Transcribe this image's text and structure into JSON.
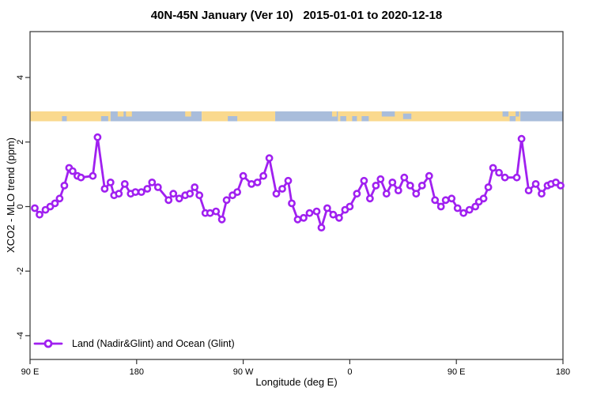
{
  "title": "40N-45N January (Ver 10)   2015-01-01 to 2020-12-18",
  "axes": {
    "x_label": "Longitude (deg E)",
    "y_label": "XCO2 - MLO trend (ppm)",
    "x_ticks": [
      {
        "lon": 90,
        "label": "90 E"
      },
      {
        "lon": 180,
        "label": "180"
      },
      {
        "lon": 270,
        "label": "90 W"
      },
      {
        "lon": 360,
        "label": "0"
      },
      {
        "lon": 450,
        "label": "90 E"
      },
      {
        "lon": 540,
        "label": "180"
      }
    ],
    "y_ticks": [
      {
        "value": -4,
        "label": "-4"
      },
      {
        "value": -2,
        "label": "-2"
      },
      {
        "value": 0,
        "label": "0"
      },
      {
        "value": 2,
        "label": "2"
      },
      {
        "value": 4,
        "label": "4"
      }
    ]
  },
  "legend": {
    "label": "Land (Nadir&Glint) and Ocean (Glint)"
  },
  "colors": {
    "series": "#A020F0",
    "marker_fill": "#ffffff",
    "land": "#FAD98E",
    "ocean": "#A9BDDB",
    "axis": "#333333",
    "text": "#000000"
  },
  "map_strip": {
    "description": "land/ocean world-map band drawn across the top of the plot",
    "base": [
      {
        "from": 90,
        "to": 158,
        "type": "land"
      },
      {
        "from": 158,
        "to": 235,
        "type": "ocean"
      },
      {
        "from": 235,
        "to": 297,
        "type": "land"
      },
      {
        "from": 297,
        "to": 350,
        "type": "ocean"
      },
      {
        "from": 350,
        "to": 504,
        "type": "land"
      },
      {
        "from": 504,
        "to": 540,
        "type": "ocean"
      }
    ],
    "patches": [
      {
        "from": 117,
        "to": 121,
        "row": "bottom",
        "type": "ocean"
      },
      {
        "from": 150,
        "to": 156,
        "row": "bottom",
        "type": "ocean"
      },
      {
        "from": 164,
        "to": 169,
        "row": "top",
        "type": "land"
      },
      {
        "from": 171,
        "to": 176,
        "row": "top",
        "type": "land"
      },
      {
        "from": 221,
        "to": 226,
        "row": "top",
        "type": "land"
      },
      {
        "from": 257,
        "to": 265,
        "row": "bottom",
        "type": "ocean"
      },
      {
        "from": 345,
        "to": 349,
        "row": "top",
        "type": "land"
      },
      {
        "from": 352,
        "to": 357,
        "row": "bottom",
        "type": "ocean"
      },
      {
        "from": 362,
        "to": 366,
        "row": "bottom",
        "type": "ocean"
      },
      {
        "from": 370,
        "to": 376,
        "row": "bottom",
        "type": "ocean"
      },
      {
        "from": 387,
        "to": 398,
        "row": "top",
        "type": "ocean"
      },
      {
        "from": 405,
        "to": 412,
        "row": "mid",
        "type": "ocean"
      },
      {
        "from": 489,
        "to": 494,
        "row": "top",
        "type": "ocean"
      },
      {
        "from": 495,
        "to": 500,
        "row": "bottom",
        "type": "ocean"
      },
      {
        "from": 500,
        "to": 503,
        "row": "top",
        "type": "ocean"
      }
    ]
  },
  "chart_data": {
    "type": "line",
    "title": "40N-45N January (Ver 10)   2015-01-01 to 2020-12-18",
    "xlabel": "Longitude (deg E)",
    "ylabel": "XCO2 - MLO trend (ppm)",
    "series_name": "Land (Nadir&Glint) and Ocean (Glint)",
    "marker": "open-circle",
    "grid": false,
    "legend_position": "bottom-left",
    "xlim": [
      90,
      540
    ],
    "ylim": [
      -4.75,
      5.4
    ],
    "x": [
      94,
      98,
      103,
      107,
      111,
      115,
      119,
      123,
      126,
      130,
      133,
      143,
      147,
      153,
      158,
      161,
      165,
      170,
      175,
      179,
      184,
      189,
      193,
      198,
      207,
      211,
      216,
      221,
      225,
      229,
      233,
      238,
      242,
      247,
      252,
      256,
      261,
      265,
      270,
      277,
      282,
      287,
      292,
      298,
      303,
      308,
      311,
      316,
      321,
      326,
      332,
      336,
      341,
      346,
      351,
      356,
      360,
      366,
      372,
      377,
      382,
      386,
      391,
      396,
      401,
      406,
      411,
      416,
      421,
      427,
      432,
      437,
      441,
      446,
      451,
      456,
      461,
      466,
      469,
      473,
      477,
      481,
      486,
      491,
      501,
      505,
      511,
      517,
      522,
      527,
      530,
      534,
      538
    ],
    "y": [
      -0.05,
      -0.25,
      -0.1,
      0,
      0.1,
      0.25,
      0.65,
      1.2,
      1.1,
      0.95,
      0.9,
      0.95,
      2.15,
      0.55,
      0.75,
      0.35,
      0.4,
      0.7,
      0.4,
      0.45,
      0.45,
      0.55,
      0.75,
      0.6,
      0.2,
      0.4,
      0.25,
      0.35,
      0.4,
      0.6,
      0.35,
      -0.2,
      -0.2,
      -0.15,
      -0.4,
      0.2,
      0.35,
      0.45,
      0.95,
      0.7,
      0.75,
      0.95,
      1.5,
      0.4,
      0.55,
      0.8,
      0.1,
      -0.4,
      -0.35,
      -0.2,
      -0.15,
      -0.65,
      -0.05,
      -0.25,
      -0.35,
      -0.1,
      0,
      0.4,
      0.8,
      0.25,
      0.65,
      0.85,
      0.4,
      0.75,
      0.5,
      0.9,
      0.65,
      0.4,
      0.65,
      0.95,
      0.2,
      0,
      0.2,
      0.25,
      -0.05,
      -0.2,
      -0.1,
      0,
      0.15,
      0.25,
      0.6,
      1.2,
      1.05,
      0.9,
      0.9,
      2.1,
      0.5,
      0.7,
      0.4,
      0.65,
      0.7,
      0.75,
      0.65
    ]
  }
}
